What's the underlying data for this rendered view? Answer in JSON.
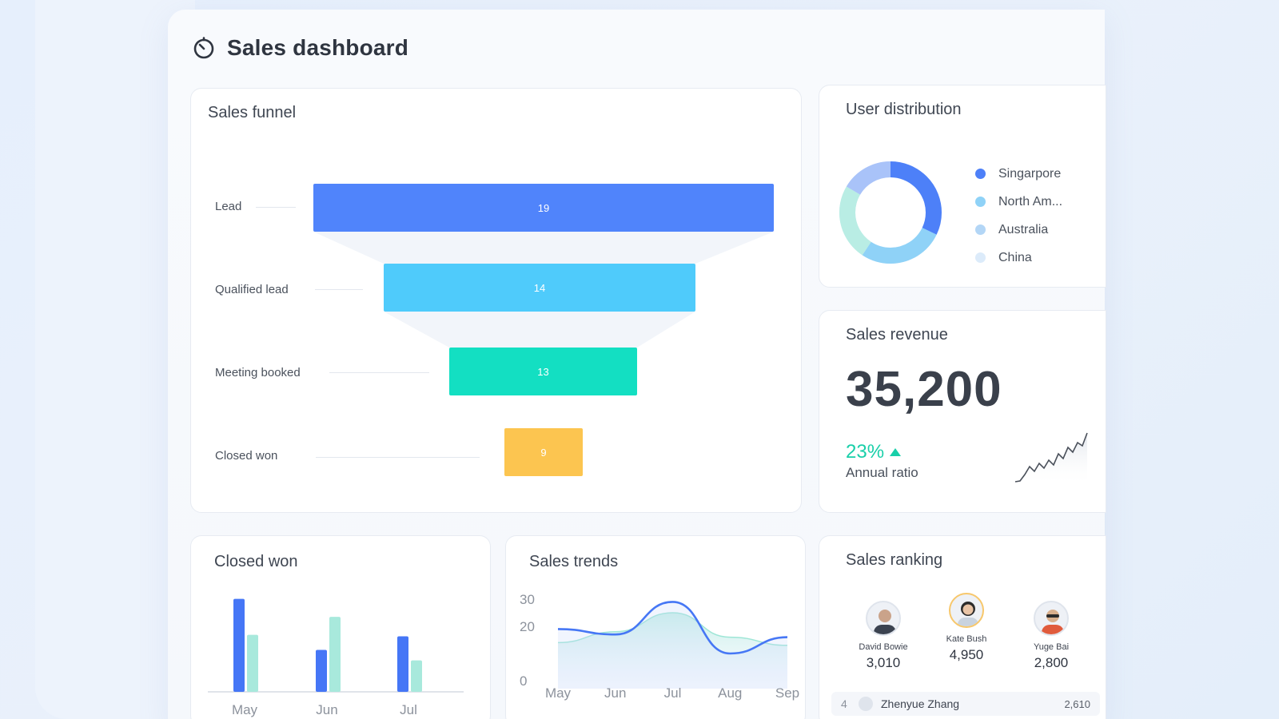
{
  "header": {
    "title": "Sales dashboard",
    "icon": "timer-icon"
  },
  "funnel": {
    "title": "Sales funnel",
    "stages": [
      {
        "label": "Lead",
        "value": "19",
        "color": "#5084fb"
      },
      {
        "label": "Qualified lead",
        "value": "14",
        "color": "#4fcbfb"
      },
      {
        "label": "Meeting booked",
        "value": "13",
        "color": "#13dfc2"
      },
      {
        "label": "Closed won",
        "value": "9",
        "color": "#fcc550"
      }
    ]
  },
  "distribution": {
    "title": "User distribution",
    "legend": [
      {
        "label": "Singarpore",
        "color": "#4d80f8"
      },
      {
        "label": "North Am...",
        "color": "#8fd2f7"
      },
      {
        "label": "Australia",
        "color": "#b3d6f6"
      },
      {
        "label": "China",
        "color": "#dcebfa"
      }
    ]
  },
  "revenue": {
    "title": "Sales revenue",
    "value": "35,200",
    "ratio": "23%",
    "ratio_label": "Annual ratio",
    "accent": "#19cfa9"
  },
  "closed_won": {
    "title": "Closed won",
    "chart_data": {
      "type": "bar",
      "categories": [
        "May",
        "Jun",
        "Jul"
      ],
      "series": [
        {
          "values": [
            62,
            28,
            37
          ],
          "color": "#4576f6"
        },
        {
          "values": [
            38,
            50,
            21
          ],
          "color": "#a8e9dc"
        }
      ],
      "ylim": [
        0,
        65
      ]
    }
  },
  "trends": {
    "title": "Sales trends",
    "chart_data": {
      "type": "line",
      "x": [
        "May",
        "Jun",
        "Jul",
        "Aug",
        "Sep"
      ],
      "yticks": [
        "30",
        "20",
        "0"
      ],
      "series": [
        {
          "values": [
            19,
            17,
            29,
            10,
            16
          ],
          "color": "#4677f5"
        },
        {
          "values": [
            14,
            18,
            25,
            16,
            13
          ],
          "color": "#9ee6d6"
        }
      ],
      "ylim": [
        0,
        30
      ]
    }
  },
  "ranking": {
    "title": "Sales ranking",
    "top": [
      {
        "name": "David Bowie",
        "score": "3,010",
        "rank": "2"
      },
      {
        "name": "Kate Bush",
        "score": "4,950",
        "rank": "1"
      },
      {
        "name": "Yuge Bai",
        "score": "2,800",
        "rank": "3"
      }
    ],
    "rows": [
      {
        "rank": "4",
        "name": "Zhenyue Zhang",
        "score": "2,610"
      }
    ]
  }
}
